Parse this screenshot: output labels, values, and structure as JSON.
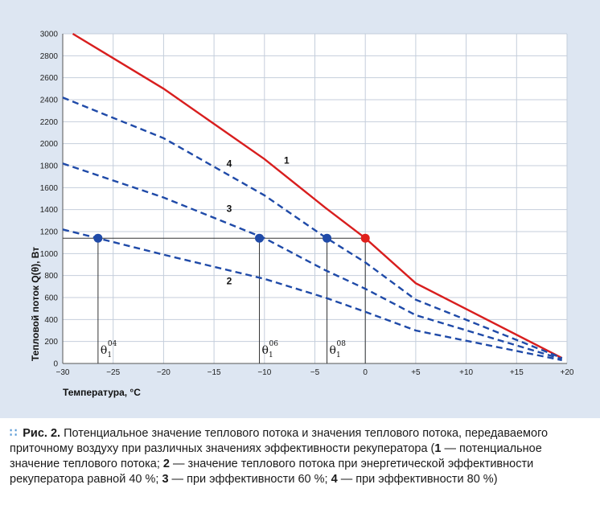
{
  "chart_data": {
    "type": "line",
    "xlabel": "Температура, °C",
    "ylabel": "Тепловой поток Q(θ), Вт",
    "xlim": [
      -30,
      20
    ],
    "ylim": [
      0,
      3000
    ],
    "x_ticks": [
      "−30",
      "−25",
      "−20",
      "−15",
      "−10",
      "−5",
      "0",
      "+5",
      "+10",
      "+15",
      "+20"
    ],
    "y_ticks": [
      "0",
      "200",
      "400",
      "600",
      "800",
      "1000",
      "1200",
      "1400",
      "1600",
      "1800",
      "2000",
      "2200",
      "2400",
      "2600",
      "2800",
      "3000"
    ],
    "grid": true,
    "series": [
      {
        "name": "1",
        "color": "#d81e1e",
        "style": "solid",
        "x": [
          -29,
          -20,
          -10,
          -4,
          0,
          5,
          19.5
        ],
        "y": [
          3000,
          2500,
          1860,
          1420,
          1140,
          730,
          50
        ]
      },
      {
        "name": "4",
        "color": "#1f4aa8",
        "style": "dashed",
        "x": [
          -30,
          -20,
          -10,
          -4,
          0,
          5,
          19.5
        ],
        "y": [
          2420,
          2050,
          1530,
          1150,
          920,
          580,
          50
        ]
      },
      {
        "name": "3",
        "color": "#1f4aa8",
        "style": "dashed",
        "x": [
          -30,
          -20,
          -10,
          -4,
          0,
          5,
          19.5
        ],
        "y": [
          1820,
          1510,
          1140,
          850,
          680,
          440,
          40
        ]
      },
      {
        "name": "2",
        "color": "#1f4aa8",
        "style": "dashed",
        "x": [
          -30,
          -20,
          -10,
          -4,
          0,
          5,
          19.5
        ],
        "y": [
          1220,
          990,
          770,
          600,
          470,
          300,
          30
        ]
      }
    ],
    "reference_line_y": 1140,
    "markers": [
      {
        "x": -26.5,
        "y": 1140,
        "color": "#1f4aa8",
        "label": "θ",
        "sub": "1",
        "sup": "04"
      },
      {
        "x": -10.5,
        "y": 1140,
        "color": "#1f4aa8",
        "label": "θ",
        "sub": "1",
        "sup": "06"
      },
      {
        "x": -3.8,
        "y": 1140,
        "color": "#1f4aa8",
        "label": "θ",
        "sub": "1",
        "sup": "08"
      },
      {
        "x": 0,
        "y": 1140,
        "color": "#e0201c",
        "label": "",
        "sub": "",
        "sup": ""
      }
    ],
    "curve_labels": [
      {
        "text": "1",
        "x": -7.8,
        "y": 1820
      },
      {
        "text": "4",
        "x": -13.5,
        "y": 1790
      },
      {
        "text": "3",
        "x": -13.5,
        "y": 1380
      },
      {
        "text": "2",
        "x": -13.5,
        "y": 720
      }
    ]
  },
  "caption": {
    "bullet": "∷",
    "title": "Рис. 2.",
    "text_1": " Потенциальное значение теплового потока и значения теплового потока, передаваемого приточному воздуху при различных значениях эффективности рекуператора (",
    "n1": "1",
    "text_2": " — потенциальное значение теплового потока; ",
    "n2": "2",
    "text_3": " — значение теплового потока при энергетической эффективности рекуператора равной 40 %; ",
    "n3": "3",
    "text_4": " — при эффективности 60 %; ",
    "n4": "4",
    "text_5": " — при эффективности 80 %)"
  }
}
